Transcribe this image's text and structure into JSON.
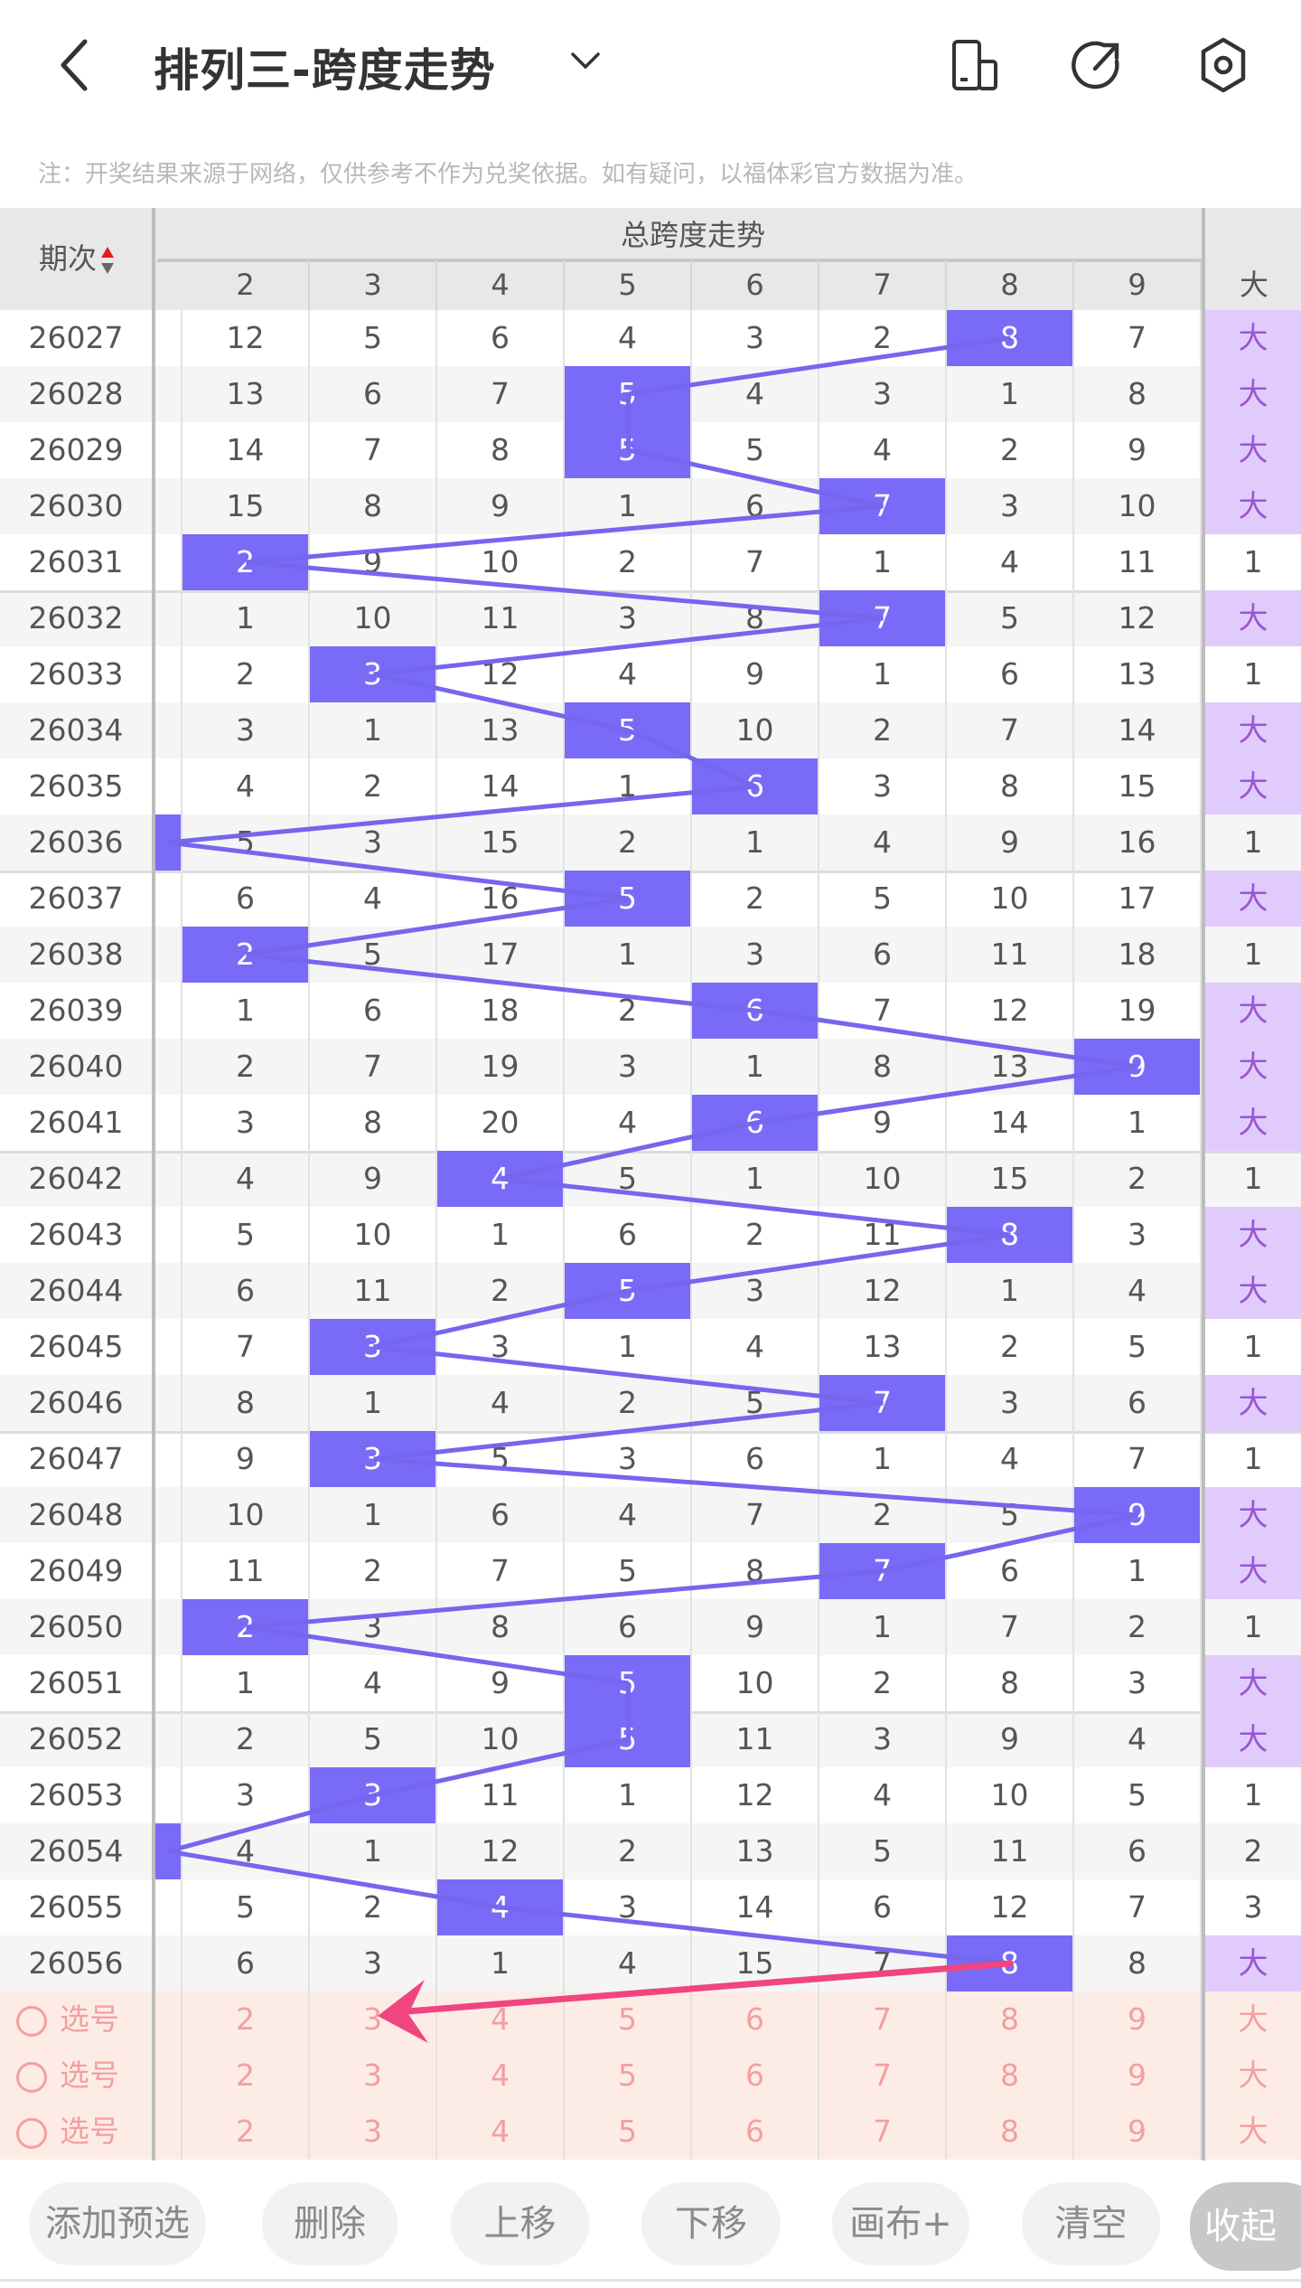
{
  "header": {
    "title": "排列三-跨度走势"
  },
  "note": "注：开奖结果来源于网络，仅供参考不作为兑奖依据。如有疑问，以福体彩官方数据为准。",
  "table": {
    "period_header": "期次",
    "group_header": "总跨度走势",
    "columns": [
      "2",
      "3",
      "4",
      "5",
      "6",
      "7",
      "8",
      "9"
    ],
    "big_header": "大",
    "rows": [
      {
        "period": "26027",
        "cells": [
          "12",
          "5",
          "6",
          "4",
          "3",
          "2",
          "8",
          "7"
        ],
        "hit": 6,
        "big": "大"
      },
      {
        "period": "26028",
        "cells": [
          "13",
          "6",
          "7",
          "5",
          "4",
          "3",
          "1",
          "8"
        ],
        "hit": 3,
        "big": "大"
      },
      {
        "period": "26029",
        "cells": [
          "14",
          "7",
          "8",
          "5",
          "5",
          "4",
          "2",
          "9"
        ],
        "hit": 3,
        "big": "大"
      },
      {
        "period": "26030",
        "cells": [
          "15",
          "8",
          "9",
          "1",
          "6",
          "7",
          "3",
          "10"
        ],
        "hit": 5,
        "big": "大"
      },
      {
        "period": "26031",
        "cells": [
          "2",
          "9",
          "10",
          "2",
          "7",
          "1",
          "4",
          "11"
        ],
        "hit": 0,
        "big": "1"
      },
      {
        "period": "26032",
        "cells": [
          "1",
          "10",
          "11",
          "3",
          "8",
          "7",
          "5",
          "12"
        ],
        "hit": 5,
        "big": "大"
      },
      {
        "period": "26033",
        "cells": [
          "2",
          "3",
          "12",
          "4",
          "9",
          "1",
          "6",
          "13"
        ],
        "hit": 1,
        "big": "1"
      },
      {
        "period": "26034",
        "cells": [
          "3",
          "1",
          "13",
          "5",
          "10",
          "2",
          "7",
          "14"
        ],
        "hit": 3,
        "big": "大"
      },
      {
        "period": "26035",
        "cells": [
          "4",
          "2",
          "14",
          "1",
          "6",
          "3",
          "8",
          "15"
        ],
        "hit": 4,
        "big": "大"
      },
      {
        "period": "26036",
        "cells": [
          "5",
          "3",
          "15",
          "2",
          "1",
          "4",
          "9",
          "16"
        ],
        "hit": -1,
        "big": "1"
      },
      {
        "period": "26037",
        "cells": [
          "6",
          "4",
          "16",
          "5",
          "2",
          "5",
          "10",
          "17"
        ],
        "hit": 3,
        "big": "大"
      },
      {
        "period": "26038",
        "cells": [
          "2",
          "5",
          "17",
          "1",
          "3",
          "6",
          "11",
          "18"
        ],
        "hit": 0,
        "big": "1"
      },
      {
        "period": "26039",
        "cells": [
          "1",
          "6",
          "18",
          "2",
          "6",
          "7",
          "12",
          "19"
        ],
        "hit": 4,
        "big": "大"
      },
      {
        "period": "26040",
        "cells": [
          "2",
          "7",
          "19",
          "3",
          "1",
          "8",
          "13",
          "9"
        ],
        "hit": 7,
        "big": "大"
      },
      {
        "period": "26041",
        "cells": [
          "3",
          "8",
          "20",
          "4",
          "6",
          "9",
          "14",
          "1"
        ],
        "hit": 4,
        "big": "大"
      },
      {
        "period": "26042",
        "cells": [
          "4",
          "9",
          "4",
          "5",
          "1",
          "10",
          "15",
          "2"
        ],
        "hit": 2,
        "big": "1"
      },
      {
        "period": "26043",
        "cells": [
          "5",
          "10",
          "1",
          "6",
          "2",
          "11",
          "8",
          "3"
        ],
        "hit": 6,
        "big": "大"
      },
      {
        "period": "26044",
        "cells": [
          "6",
          "11",
          "2",
          "5",
          "3",
          "12",
          "1",
          "4"
        ],
        "hit": 3,
        "big": "大"
      },
      {
        "period": "26045",
        "cells": [
          "7",
          "3",
          "3",
          "1",
          "4",
          "13",
          "2",
          "5"
        ],
        "hit": 1,
        "big": "1"
      },
      {
        "period": "26046",
        "cells": [
          "8",
          "1",
          "4",
          "2",
          "5",
          "7",
          "3",
          "6"
        ],
        "hit": 5,
        "big": "大"
      },
      {
        "period": "26047",
        "cells": [
          "9",
          "3",
          "5",
          "3",
          "6",
          "1",
          "4",
          "7"
        ],
        "hit": 1,
        "big": "1"
      },
      {
        "period": "26048",
        "cells": [
          "10",
          "1",
          "6",
          "4",
          "7",
          "2",
          "5",
          "9"
        ],
        "hit": 7,
        "big": "大"
      },
      {
        "period": "26049",
        "cells": [
          "11",
          "2",
          "7",
          "5",
          "8",
          "7",
          "6",
          "1"
        ],
        "hit": 5,
        "big": "大"
      },
      {
        "period": "26050",
        "cells": [
          "2",
          "3",
          "8",
          "6",
          "9",
          "1",
          "7",
          "2"
        ],
        "hit": 0,
        "big": "1"
      },
      {
        "period": "26051",
        "cells": [
          "1",
          "4",
          "9",
          "5",
          "10",
          "2",
          "8",
          "3"
        ],
        "hit": 3,
        "big": "大"
      },
      {
        "period": "26052",
        "cells": [
          "2",
          "5",
          "10",
          "5",
          "11",
          "3",
          "9",
          "4"
        ],
        "hit": 3,
        "big": "大"
      },
      {
        "period": "26053",
        "cells": [
          "3",
          "3",
          "11",
          "1",
          "12",
          "4",
          "10",
          "5"
        ],
        "hit": 1,
        "big": "1"
      },
      {
        "period": "26054",
        "cells": [
          "4",
          "1",
          "12",
          "2",
          "13",
          "5",
          "11",
          "6"
        ],
        "hit": -1,
        "big": "2"
      },
      {
        "period": "26055",
        "cells": [
          "5",
          "2",
          "4",
          "3",
          "14",
          "6",
          "12",
          "7"
        ],
        "hit": 2,
        "big": "3"
      },
      {
        "period": "26056",
        "cells": [
          "6",
          "3",
          "1",
          "4",
          "15",
          "7",
          "8",
          "8"
        ],
        "hit": 6,
        "big": "大"
      }
    ],
    "select_rows": [
      {
        "label": "选号",
        "cells": [
          "2",
          "3",
          "4",
          "5",
          "6",
          "7",
          "8",
          "9"
        ],
        "big": "大"
      },
      {
        "label": "选号",
        "cells": [
          "2",
          "3",
          "4",
          "5",
          "6",
          "7",
          "8",
          "9"
        ],
        "big": "大"
      },
      {
        "label": "选号",
        "cells": [
          "2",
          "3",
          "4",
          "5",
          "6",
          "7",
          "8",
          "9"
        ],
        "big": "大"
      }
    ]
  },
  "toolbar": {
    "add": "添加预选",
    "delete": "删除",
    "up": "上移",
    "down": "下移",
    "canvas": "画布+",
    "clear": "清空",
    "collapse": "收起"
  },
  "colors": {
    "hit": "#7a6af8",
    "line": "#7566ee",
    "big_bg": "#e1cbfd",
    "select_bg": "#fdece6",
    "arrow": "#f0457e"
  }
}
